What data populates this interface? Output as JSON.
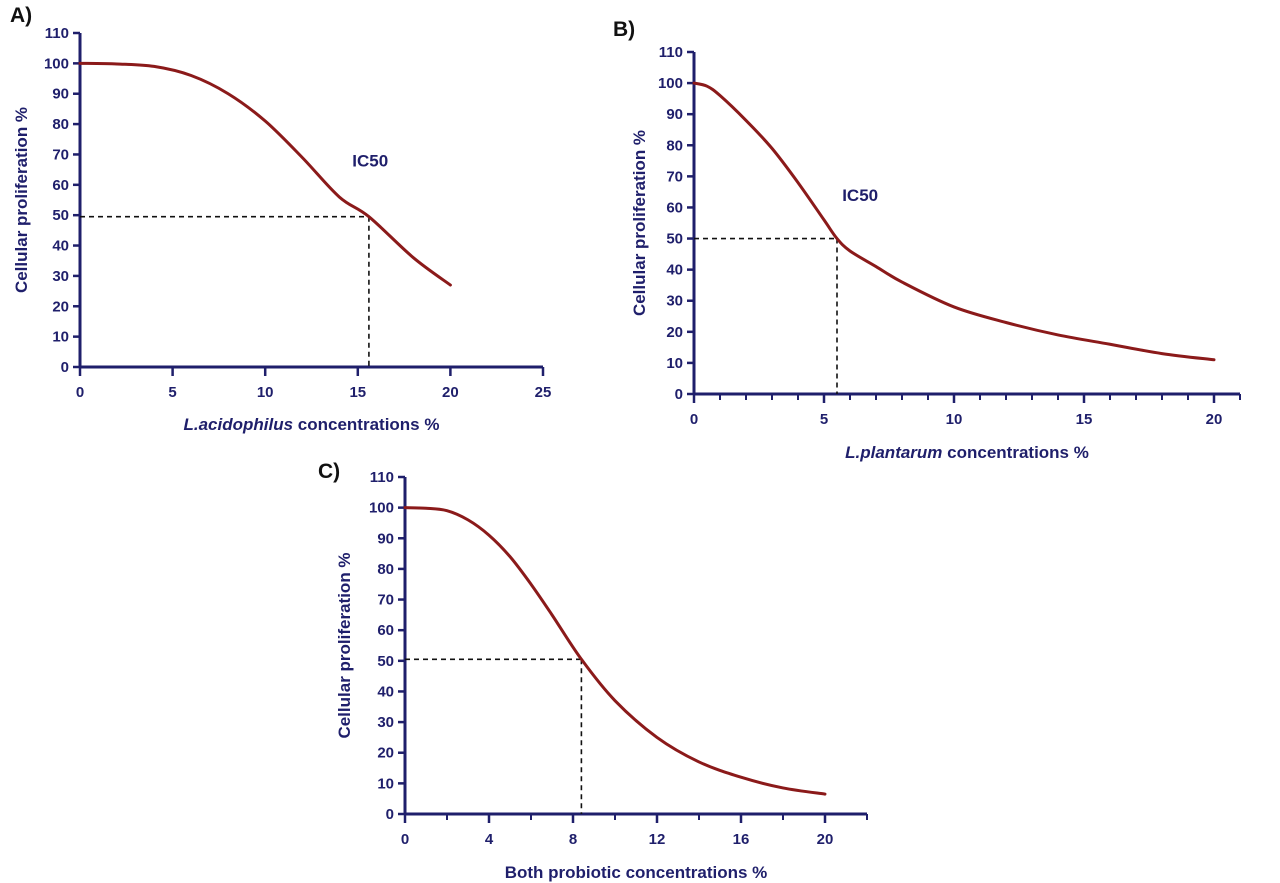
{
  "colors": {
    "axis": "#1f1f6b",
    "curve": "#8b1a1a",
    "guide": "#111111"
  },
  "chart_data": [
    {
      "id": "A",
      "type": "line",
      "panel_label": "A)",
      "title": "",
      "xlabel_italic": "L.acidophilus",
      "xlabel_rest": " concentrations %",
      "ylabel": "Cellular proliferation %",
      "xlim": [
        0,
        25
      ],
      "ylim": [
        0,
        110
      ],
      "x_major_ticks": [
        0,
        5,
        10,
        15,
        20,
        25
      ],
      "x_minor_ticks": [],
      "y_ticks": [
        0,
        10,
        20,
        30,
        40,
        50,
        60,
        70,
        80,
        90,
        100,
        110
      ],
      "x": [
        0,
        2,
        4,
        6,
        8,
        10,
        12,
        14,
        15.6,
        18,
        20
      ],
      "y": [
        100,
        99.8,
        99,
        96,
        90,
        81,
        69,
        56,
        49.5,
        36,
        27
      ],
      "ic50": {
        "x": 15.6,
        "y": 49.5
      },
      "annotation": "IC50",
      "annotation_at": [
        14.7,
        66
      ]
    },
    {
      "id": "B",
      "type": "line",
      "panel_label": "B)",
      "title": "",
      "xlabel_italic": "L.plantarum",
      "xlabel_rest": " concentrations %",
      "ylabel": "Cellular proliferation %",
      "xlim": [
        0,
        21
      ],
      "ylim": [
        0,
        110
      ],
      "x_major_ticks": [
        0,
        5,
        10,
        15,
        20
      ],
      "x_minor_ticks": [
        1,
        2,
        3,
        4,
        6,
        7,
        8,
        9,
        11,
        12,
        13,
        14,
        16,
        17,
        18,
        19,
        21
      ],
      "y_ticks": [
        0,
        10,
        20,
        30,
        40,
        50,
        60,
        70,
        80,
        90,
        100,
        110
      ],
      "x": [
        0,
        0.5,
        1,
        2,
        3,
        4,
        5,
        5.5,
        6,
        7,
        8,
        10,
        12,
        14,
        16,
        18,
        20
      ],
      "y": [
        100,
        99,
        96,
        88,
        79,
        68,
        56,
        50,
        46,
        41,
        36,
        28,
        23,
        19,
        16,
        13,
        11
      ],
      "ic50": {
        "x": 5.5,
        "y": 50
      },
      "annotation": "IC50",
      "annotation_at": [
        5.7,
        62
      ]
    },
    {
      "id": "C",
      "type": "line",
      "panel_label": "C)",
      "title": "",
      "xlabel_italic": "",
      "xlabel_rest": "Both probiotic concentrations %",
      "ylabel": "Cellular proliferation %",
      "xlim": [
        0,
        22
      ],
      "ylim": [
        0,
        110
      ],
      "x_major_ticks": [
        0,
        4,
        8,
        12,
        16,
        20
      ],
      "x_minor_ticks": [
        2,
        6,
        10,
        14,
        18,
        22
      ],
      "y_ticks": [
        0,
        10,
        20,
        30,
        40,
        50,
        60,
        70,
        80,
        90,
        100,
        110
      ],
      "x": [
        0,
        1,
        2,
        3,
        4,
        5,
        6,
        7,
        8.4,
        10,
        12,
        14,
        16,
        18,
        20
      ],
      "y": [
        100,
        99.8,
        99,
        96,
        91,
        84,
        75,
        65,
        50.5,
        37,
        25,
        17,
        12,
        8.5,
        6.5
      ],
      "ic50": {
        "x": 8.4,
        "y": 50.5
      },
      "annotation": "",
      "annotation_at": null
    }
  ]
}
